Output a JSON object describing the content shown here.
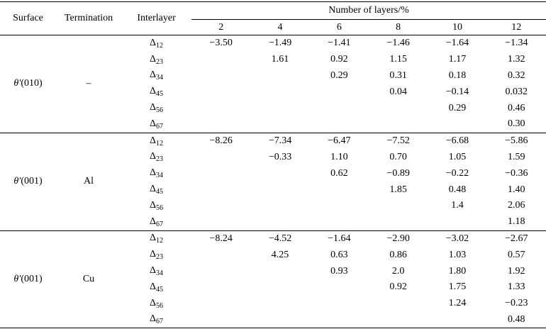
{
  "headers": {
    "surface": "Surface",
    "termination": "Termination",
    "interlayer": "Interlayer",
    "number_of_layers": "Number of layers/%",
    "layers": [
      "2",
      "4",
      "6",
      "8",
      "10",
      "12"
    ]
  },
  "groups": [
    {
      "surface_symbol": "θ′",
      "surface_index": "(010)",
      "termination": "–",
      "rows": [
        {
          "interlayer_sub": "12",
          "values": [
            "−3.50",
            "−1.49",
            "−1.41",
            "−1.46",
            "−1.64",
            "−1.34"
          ]
        },
        {
          "interlayer_sub": "23",
          "values": [
            "",
            "1.61",
            "0.92",
            "1.15",
            "1.17",
            "1.32"
          ]
        },
        {
          "interlayer_sub": "34",
          "values": [
            "",
            "",
            "0.29",
            "0.31",
            "0.18",
            "0.32"
          ]
        },
        {
          "interlayer_sub": "45",
          "values": [
            "",
            "",
            "",
            "0.04",
            "−0.14",
            "0.032"
          ]
        },
        {
          "interlayer_sub": "56",
          "values": [
            "",
            "",
            "",
            "",
            "0.29",
            "0.46"
          ]
        },
        {
          "interlayer_sub": "67",
          "values": [
            "",
            "",
            "",
            "",
            "",
            "0.30"
          ]
        }
      ]
    },
    {
      "surface_symbol": "θ′",
      "surface_index": "(001)",
      "termination": "Al",
      "rows": [
        {
          "interlayer_sub": "12",
          "values": [
            "−8.26",
            "−7.34",
            "−6.47",
            "−7.52",
            "−6.68",
            "−5.86"
          ]
        },
        {
          "interlayer_sub": "23",
          "values": [
            "",
            "−0.33",
            "1.10",
            "0.70",
            "1.05",
            "1.59"
          ]
        },
        {
          "interlayer_sub": "34",
          "values": [
            "",
            "",
            "0.62",
            "−0.89",
            "−0.22",
            "−0.36"
          ]
        },
        {
          "interlayer_sub": "45",
          "values": [
            "",
            "",
            "",
            "1.85",
            "0.48",
            "1.40"
          ]
        },
        {
          "interlayer_sub": "56",
          "values": [
            "",
            "",
            "",
            "",
            "1.4",
            "2.06"
          ]
        },
        {
          "interlayer_sub": "67",
          "values": [
            "",
            "",
            "",
            "",
            "",
            "1.18"
          ]
        }
      ]
    },
    {
      "surface_symbol": "θ′",
      "surface_index": "(001)",
      "termination": "Cu",
      "rows": [
        {
          "interlayer_sub": "12",
          "values": [
            "−8.24",
            "−4.52",
            "−1.64",
            "−2.90",
            "−3.02",
            "−2.67"
          ]
        },
        {
          "interlayer_sub": "23",
          "values": [
            "",
            "4.25",
            "0.63",
            "0.86",
            "1.03",
            "0.57"
          ]
        },
        {
          "interlayer_sub": "34",
          "values": [
            "",
            "",
            "0.93",
            "2.0",
            "1.80",
            "1.92"
          ]
        },
        {
          "interlayer_sub": "45",
          "values": [
            "",
            "",
            "",
            "0.92",
            "1.75",
            "1.33"
          ]
        },
        {
          "interlayer_sub": "56",
          "values": [
            "",
            "",
            "",
            "",
            "1.24",
            "−0.23"
          ]
        },
        {
          "interlayer_sub": "67",
          "values": [
            "",
            "",
            "",
            "",
            "",
            "0.48"
          ]
        }
      ]
    }
  ]
}
